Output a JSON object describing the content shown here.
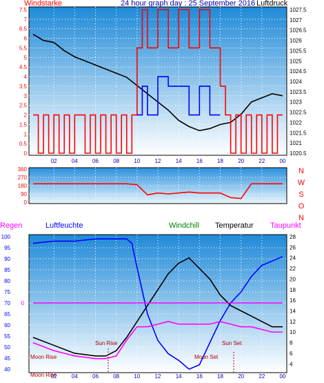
{
  "chart_data": [
    {
      "id": "top",
      "type": "line",
      "title": "24 hour graph day : 25 September 2016",
      "left_axis_label": "Windstarke",
      "right_axis_label": "Luftdruck",
      "x_tick_labels": [
        "02",
        "04",
        "06",
        "08",
        "10",
        "12",
        "14",
        "16",
        "18",
        "20",
        "22",
        "00"
      ],
      "left_ticks": [
        "0",
        "0.5",
        "1",
        "1.5",
        "2",
        "2.5",
        "3",
        "3.5",
        "4",
        "4.5",
        "5",
        "5.5",
        "6",
        "6.5",
        "7",
        "7.5"
      ],
      "right_ticks": [
        "1020.5",
        "1021",
        "1021.5",
        "1022",
        "1022.5",
        "1023",
        "1023.5",
        "1024",
        "1024.5",
        "1025",
        "1025.5",
        "1026",
        "1026.5",
        "1027",
        "1027.5"
      ],
      "ylim_left": [
        0,
        7.5
      ],
      "ylim_right": [
        1020.5,
        1027.5
      ],
      "series": [
        {
          "key": "pressure",
          "axis": "right",
          "color": "#000000",
          "points": [
            [
              0,
              1026.3
            ],
            [
              1,
              1026.0
            ],
            [
              2,
              1025.9
            ],
            [
              3,
              1025.5
            ],
            [
              4,
              1025.2
            ],
            [
              5,
              1025.0
            ],
            [
              6,
              1024.8
            ],
            [
              7,
              1024.6
            ],
            [
              8,
              1024.4
            ],
            [
              9,
              1024.2
            ],
            [
              10,
              1023.8
            ],
            [
              11,
              1023.4
            ],
            [
              12,
              1023.0
            ],
            [
              13,
              1022.6
            ],
            [
              14,
              1022.1
            ],
            [
              15,
              1021.8
            ],
            [
              16,
              1021.6
            ],
            [
              17,
              1021.7
            ],
            [
              18,
              1021.9
            ],
            [
              19,
              1022.0
            ],
            [
              20,
              1022.4
            ],
            [
              21,
              1023.0
            ],
            [
              22,
              1023.2
            ],
            [
              23,
              1023.4
            ],
            [
              24,
              1023.3
            ]
          ]
        },
        {
          "key": "wind_gust",
          "axis": "left",
          "color": "#ff0000",
          "points": [
            [
              0,
              2
            ],
            [
              0.5,
              0
            ],
            [
              1,
              2
            ],
            [
              1.5,
              0
            ],
            [
              2,
              2
            ],
            [
              2.5,
              0
            ],
            [
              3,
              2
            ],
            [
              3.5,
              0
            ],
            [
              4,
              2
            ],
            [
              5,
              0
            ],
            [
              5.5,
              2
            ],
            [
              6,
              0
            ],
            [
              6.5,
              2
            ],
            [
              7,
              0
            ],
            [
              7.5,
              2
            ],
            [
              8,
              0
            ],
            [
              8.5,
              2
            ],
            [
              9,
              0
            ],
            [
              9.5,
              2
            ],
            [
              10,
              5.5
            ],
            [
              10.5,
              7.5
            ],
            [
              11,
              5.5
            ],
            [
              12,
              7.5
            ],
            [
              13,
              5.5
            ],
            [
              14,
              7.5
            ],
            [
              15,
              5.5
            ],
            [
              16,
              7.5
            ],
            [
              17,
              5.5
            ],
            [
              18,
              3.5
            ],
            [
              18.5,
              2
            ],
            [
              19,
              0
            ],
            [
              19.5,
              2
            ],
            [
              20,
              0
            ],
            [
              20.5,
              2
            ],
            [
              21,
              0
            ],
            [
              21.5,
              2
            ],
            [
              22,
              0
            ],
            [
              22.5,
              2
            ],
            [
              23,
              0
            ],
            [
              23.5,
              2
            ],
            [
              24,
              2
            ]
          ]
        },
        {
          "key": "wind_avg",
          "axis": "left",
          "color": "#0000ff",
          "points": [
            [
              10,
              2
            ],
            [
              10.5,
              3.5
            ],
            [
              11,
              2
            ],
            [
              12,
              4
            ],
            [
              13,
              3.5
            ],
            [
              14,
              3.5
            ],
            [
              15,
              2
            ],
            [
              16,
              3.5
            ],
            [
              17,
              2
            ],
            [
              18,
              2
            ]
          ]
        }
      ]
    },
    {
      "id": "direction",
      "type": "line",
      "y_ticks": [
        "0",
        "90",
        "180",
        "270",
        "360"
      ],
      "compass_labels": [
        "N",
        "W",
        "S",
        "O",
        "N"
      ],
      "ylim": [
        0,
        360
      ],
      "series": [
        {
          "key": "wind_direction",
          "color": "#ff0000",
          "points": [
            [
              0,
              200
            ],
            [
              2,
              200
            ],
            [
              4,
              200
            ],
            [
              6,
              200
            ],
            [
              7,
              200
            ],
            [
              8,
              200
            ],
            [
              9,
              200
            ],
            [
              10,
              190
            ],
            [
              11,
              80
            ],
            [
              12,
              100
            ],
            [
              13,
              90
            ],
            [
              14,
              100
            ],
            [
              15,
              110
            ],
            [
              16,
              100
            ],
            [
              17,
              100
            ],
            [
              18,
              100
            ],
            [
              19,
              50
            ],
            [
              20,
              40
            ],
            [
              21,
              200
            ],
            [
              22,
              200
            ],
            [
              23,
              200
            ],
            [
              24,
              200
            ]
          ]
        }
      ]
    },
    {
      "id": "bottom",
      "type": "line",
      "legend": [
        "Regen",
        "Luftfeuchte",
        "Windchill",
        "Temperatur",
        "Taupunkt"
      ],
      "x_tick_labels": [
        "02",
        "04",
        "06",
        "08",
        "10",
        "12",
        "14",
        "16",
        "18",
        "20",
        "22",
        "00"
      ],
      "left_ticks": [
        "40",
        "45",
        "50",
        "55",
        "60",
        "65",
        "70",
        "75",
        "80",
        "85",
        "90",
        "95",
        "100"
      ],
      "right_ticks": [
        "4",
        "6",
        "8",
        "10",
        "12",
        "14",
        "16",
        "18",
        "20",
        "22",
        "24",
        "26",
        "28"
      ],
      "regen_zero_label": "0",
      "ylim_left": [
        40,
        100
      ],
      "ylim_right": [
        3,
        28
      ],
      "annotations": [
        "Sun Rise",
        "Sun Set",
        "Moon Rise",
        "Moon Set",
        "Moon Rise"
      ],
      "series": [
        {
          "key": "humidity",
          "axis": "left",
          "color": "#0000ff",
          "points": [
            [
              0,
              97
            ],
            [
              2,
              98
            ],
            [
              4,
              98
            ],
            [
              6,
              99
            ],
            [
              8,
              99
            ],
            [
              9,
              99
            ],
            [
              9.5,
              97
            ],
            [
              10,
              86
            ],
            [
              11,
              65
            ],
            [
              12,
              53
            ],
            [
              13,
              47
            ],
            [
              14,
              44
            ],
            [
              15,
              40
            ],
            [
              16,
              42
            ],
            [
              17,
              52
            ],
            [
              18,
              62
            ],
            [
              19,
              70
            ],
            [
              20,
              75
            ],
            [
              21,
              82
            ],
            [
              22,
              87
            ],
            [
              23,
              89
            ],
            [
              24,
              91
            ]
          ]
        },
        {
          "key": "temperature",
          "axis": "right",
          "color": "#000000",
          "points": [
            [
              0,
              9
            ],
            [
              2,
              7.5
            ],
            [
              4,
              6
            ],
            [
              6,
              5.5
            ],
            [
              7,
              5.5
            ],
            [
              8,
              6.5
            ],
            [
              9,
              9
            ],
            [
              10,
              12
            ],
            [
              11,
              15
            ],
            [
              12,
              18
            ],
            [
              13,
              21
            ],
            [
              14,
              23
            ],
            [
              15,
              24
            ],
            [
              16,
              22
            ],
            [
              17,
              20
            ],
            [
              18,
              17
            ],
            [
              19,
              15
            ],
            [
              20,
              14
            ],
            [
              21,
              13
            ],
            [
              22,
              12
            ],
            [
              23,
              11
            ],
            [
              24,
              11
            ]
          ]
        },
        {
          "key": "dewpoint",
          "axis": "right",
          "color": "#ff00ff",
          "points": [
            [
              0,
              8
            ],
            [
              2,
              6.5
            ],
            [
              4,
              5.5
            ],
            [
              6,
              5
            ],
            [
              7,
              5
            ],
            [
              8,
              5.5
            ],
            [
              9,
              8.5
            ],
            [
              10,
              11
            ],
            [
              11,
              11
            ],
            [
              12,
              11.5
            ],
            [
              13,
              12
            ],
            [
              14,
              11.5
            ],
            [
              15,
              11.5
            ],
            [
              16,
              11.5
            ],
            [
              17,
              11.5
            ],
            [
              18,
              12
            ],
            [
              19,
              11.5
            ],
            [
              20,
              11
            ],
            [
              21,
              11
            ],
            [
              22,
              10.5
            ],
            [
              23,
              10
            ],
            [
              24,
              10
            ]
          ]
        },
        {
          "key": "rain",
          "axis": "left",
          "color": "#ff00ff",
          "points": [
            [
              0,
              70
            ],
            [
              24,
              70
            ]
          ]
        }
      ]
    }
  ]
}
